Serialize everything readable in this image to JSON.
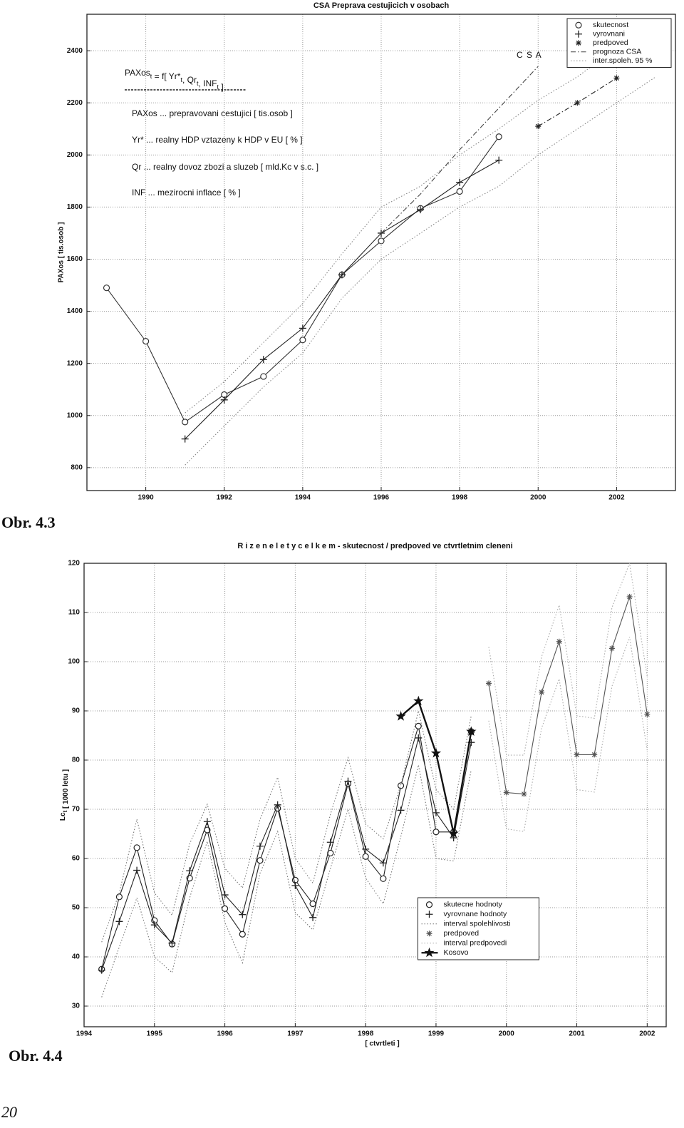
{
  "chart_data": [
    {
      "type": "line",
      "title": "CSA  Preprava cestujicich v osobach",
      "y_label": "PAXos   [ tis.osob ]",
      "formula": [
        {
          "text": "PAXos",
          "sub": "t"
        },
        {
          "text": " = f[ Yr*",
          "sub": "t"
        },
        {
          "text": ", Qr",
          "sub": "t"
        },
        {
          "text": ", INF",
          "sub": "t"
        },
        {
          "text": " ]"
        }
      ],
      "annotations": [
        "PAXos ... prepravovani cestujici [ tis.osob ]",
        "Yr*  ... realny HDP vztazeny k HDP v EU  [ % ]",
        "Qr   ... realny dovoz zbozi a sluzeb [ mld.Kc v s.c. ]",
        "INF  ... mezirocni inflace  [ % ]",
        "C S A"
      ],
      "xlim": [
        1988.5,
        2003.5
      ],
      "ylim": [
        712,
        2540
      ],
      "xticks": [
        1990,
        1992,
        1994,
        1996,
        1998,
        2000,
        2002
      ],
      "yticks": [
        800,
        1000,
        1200,
        1400,
        1600,
        1800,
        2000,
        2200,
        2400
      ],
      "grid": true,
      "legend": "upper right",
      "series": [
        {
          "name": "skutecnost",
          "marker": "circle",
          "line": "solid",
          "color": "#333333",
          "x": [
            1989,
            1990,
            1991,
            1992,
            1993,
            1994,
            1995,
            1996,
            1997,
            1998,
            1999
          ],
          "values": [
            1490,
            1285,
            975,
            1080,
            1150,
            1290,
            1540,
            1670,
            1795,
            1860,
            2070
          ]
        },
        {
          "name": "vyrovnani",
          "marker": "plus",
          "line": "solid",
          "color": "#222222",
          "x": [
            1991,
            1992,
            1993,
            1994,
            1995,
            1996,
            1997,
            1998,
            1999
          ],
          "values": [
            910,
            1060,
            1215,
            1335,
            1540,
            1700,
            1790,
            1895,
            1980
          ]
        },
        {
          "name": "predpoved",
          "marker": "asterisk",
          "line": "dashdot",
          "color": "#222222",
          "x": [
            2000,
            2001,
            2002
          ],
          "values": [
            2110,
            2200,
            2295
          ]
        },
        {
          "name": "prognoza CSA",
          "marker": "none",
          "line": "dashdot",
          "color": "#444444",
          "x": [
            1996,
            1997,
            1998,
            1999,
            2000
          ],
          "values": [
            1700,
            1850,
            2020,
            2180,
            2340
          ]
        },
        {
          "name": "inter.spoleh. 95 %",
          "marker": "none",
          "line": "dotted",
          "color": "#888888",
          "x": [
            1991,
            1992,
            1993,
            1994,
            1995,
            1996,
            1997,
            1998,
            1999,
            2000,
            2001,
            2002,
            2003
          ],
          "upper": [
            1010,
            1130,
            1280,
            1430,
            1620,
            1800,
            1880,
            2000,
            2100,
            2210,
            2300,
            2410,
            2500
          ],
          "lower": [
            810,
            960,
            1110,
            1240,
            1450,
            1600,
            1700,
            1800,
            1880,
            2000,
            2100,
            2200,
            2300
          ]
        }
      ]
    },
    {
      "type": "line",
      "title": "R i z e n e   l e t y   c e l k e m  -  skutecnost / predpoved ve ctvrtletnim cleneni",
      "x_label": "[ ctvrtleti ]",
      "y_label": [
        {
          "text": "Lc",
          "sub": "t"
        },
        {
          "text": "  [ 1000 letu ]"
        }
      ],
      "xlim": [
        1994,
        2002.27
      ],
      "ylim": [
        25.8,
        120
      ],
      "xticks": [
        1994,
        1995,
        1996,
        1997,
        1998,
        1999,
        2000,
        2001,
        2002
      ],
      "yticks": [
        30,
        40,
        50,
        60,
        70,
        80,
        90,
        100,
        110,
        120
      ],
      "grid": true,
      "legend": "lower center",
      "series": [
        {
          "name": "skutecne hodnoty",
          "marker": "circle",
          "line": "solid",
          "color": "#222222",
          "x": [
            1994.25,
            1994.5,
            1994.75,
            1995,
            1995.25,
            1995.5,
            1995.75,
            1996,
            1996.25,
            1996.5,
            1996.75,
            1997,
            1997.25,
            1997.5,
            1997.75,
            1998,
            1998.25,
            1998.5,
            1998.75,
            1999,
            1999.25,
            1999.5
          ],
          "values": [
            37.5,
            52.2,
            62.2,
            47.4,
            42.6,
            56,
            65.8,
            49.8,
            44.6,
            59.6,
            70.2,
            55.6,
            50.8,
            61.1,
            75.2,
            60.4,
            55.9,
            74.8,
            86.9,
            65.4,
            65.4,
            85.8
          ]
        },
        {
          "name": "vyrovnane hodnoty",
          "marker": "plus",
          "line": "solid",
          "color": "#222222",
          "x": [
            1994.25,
            1994.5,
            1994.75,
            1995,
            1995.25,
            1995.5,
            1995.75,
            1996,
            1996.25,
            1996.5,
            1996.75,
            1997,
            1997.25,
            1997.5,
            1997.75,
            1998,
            1998.25,
            1998.5,
            1998.75,
            1999,
            1999.25,
            1999.5
          ],
          "values": [
            37.3,
            47.2,
            57.6,
            46.5,
            42.8,
            57.5,
            67.5,
            52.6,
            48.6,
            62.5,
            70.9,
            54.5,
            48,
            63.3,
            75.7,
            61.9,
            59.1,
            69.8,
            84.5,
            69.3,
            64.2,
            83.6
          ]
        },
        {
          "name": "interval spolehlivosti",
          "marker": "none",
          "line": "dotted",
          "color": "#777777",
          "x": [
            1994.25,
            1994.5,
            1994.75,
            1995,
            1995.25,
            1995.5,
            1995.75,
            1996,
            1996.25,
            1996.5,
            1996.75,
            1997,
            1997.25,
            1997.5,
            1997.75,
            1998,
            1998.25,
            1998.5,
            1998.75,
            1999,
            1999.25,
            1999.5
          ],
          "upper": [
            43,
            53,
            68,
            53,
            48.5,
            63,
            71,
            58,
            54,
            68,
            76.5,
            60,
            55,
            69,
            80.5,
            67,
            64,
            75,
            90,
            74,
            70,
            89
          ],
          "lower": [
            31.8,
            42,
            52,
            40,
            36.8,
            52,
            63.5,
            47,
            38.8,
            57,
            65.5,
            49,
            45.5,
            58,
            70,
            56,
            50.8,
            64.5,
            79,
            60,
            59.5,
            78
          ]
        },
        {
          "name": "predpoved",
          "marker": "asterisk",
          "line": "solid",
          "color": "#555555",
          "x": [
            1999.75,
            2000,
            2000.25,
            2000.5,
            2000.75,
            2001,
            2001.25,
            2001.5,
            2001.75,
            2002
          ],
          "values": [
            95.6,
            73.4,
            73.1,
            93.8,
            104.1,
            81.1,
            81.1,
            102.7,
            113.2,
            89.3
          ]
        },
        {
          "name": "interval predpovedi",
          "marker": "none",
          "line": "dotted",
          "color": "#aaaaaa",
          "x": [
            1999.75,
            2000,
            2000.25,
            2000.5,
            2000.75,
            2001,
            2001.25,
            2001.5,
            2001.75,
            2002
          ],
          "upper": [
            103,
            81,
            81,
            101,
            111.5,
            89,
            88.5,
            111,
            120,
            97
          ],
          "lower": [
            88,
            66,
            65.5,
            86.5,
            96.5,
            74,
            73.5,
            95,
            105,
            82
          ]
        },
        {
          "name": "Kosovo",
          "marker": "star",
          "line": "thick",
          "color": "#111111",
          "x": [
            1998.5,
            1998.75,
            1999,
            1999.25,
            1999.5
          ],
          "values": [
            88.9,
            92,
            81.4,
            65.1,
            85.8
          ]
        }
      ]
    }
  ],
  "captions": [
    "Obr. 4.3",
    "Obr. 4.4"
  ],
  "page_number": "20"
}
